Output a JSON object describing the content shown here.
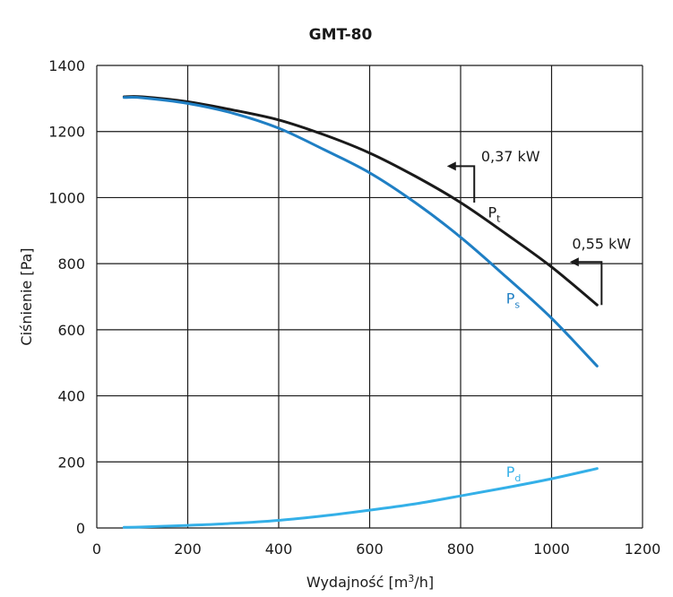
{
  "chart_data": {
    "type": "line",
    "title": "GMT-80",
    "xlabel": "Wydajność [m³/h]",
    "xlabel_parts": [
      "Wydajność [m",
      "3",
      "/h]"
    ],
    "ylabel": "Ciśnienie [Pa]",
    "xlim": [
      0,
      1200
    ],
    "ylim": [
      0,
      1400
    ],
    "xticks": [
      0,
      200,
      400,
      600,
      800,
      1000,
      1200
    ],
    "yticks": [
      0,
      200,
      400,
      600,
      800,
      1000,
      1200,
      1400
    ],
    "grid": true,
    "series": [
      {
        "name": "Pt",
        "label_main": "P",
        "label_sub": "t",
        "color": "#1a1a1a",
        "x": [
          60,
          100,
          200,
          300,
          400,
          500,
          600,
          700,
          800,
          900,
          1000,
          1100
        ],
        "y": [
          1305,
          1305,
          1290,
          1265,
          1235,
          1190,
          1135,
          1065,
          985,
          890,
          790,
          675
        ],
        "label_at": [
          860,
          940
        ]
      },
      {
        "name": "Ps",
        "label_main": "P",
        "label_sub": "s",
        "color": "#1f7fc4",
        "x": [
          60,
          100,
          200,
          300,
          400,
          500,
          600,
          700,
          800,
          900,
          1000,
          1100
        ],
        "y": [
          1303,
          1302,
          1285,
          1255,
          1210,
          1145,
          1075,
          985,
          880,
          760,
          635,
          490
        ],
        "label_at": [
          900,
          680
        ]
      },
      {
        "name": "Pd",
        "label_main": "P",
        "label_sub": "d",
        "color": "#34b0e8",
        "x": [
          60,
          100,
          200,
          300,
          400,
          500,
          600,
          700,
          800,
          900,
          1000,
          1100
        ],
        "y": [
          2,
          3,
          8,
          14,
          23,
          37,
          54,
          73,
          97,
          122,
          149,
          180
        ],
        "label_at": [
          900,
          155
        ]
      }
    ],
    "annotations": [
      {
        "text": "0,37 kW",
        "text_at": [
          845,
          1110
        ],
        "bracket_x": 830,
        "bracket_y": 1095,
        "bracket_to_y": 985,
        "arrow_to_x": 770
      },
      {
        "text": "0,55 kW",
        "text_at": [
          1045,
          845
        ],
        "bracket_x": 1110,
        "bracket_y": 805,
        "bracket_to_y": 675,
        "arrow_to_x": 1040
      }
    ]
  }
}
